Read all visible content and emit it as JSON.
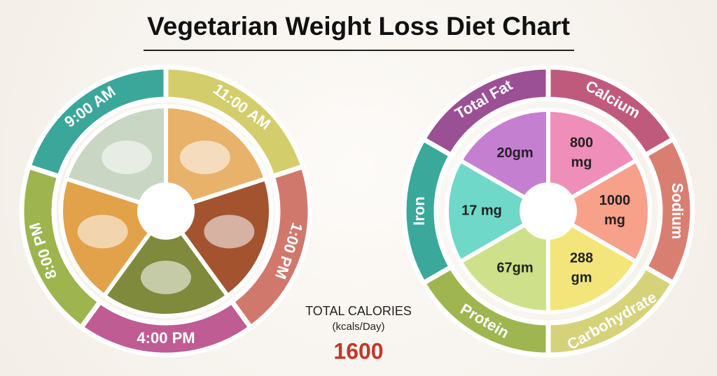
{
  "title": "Vegetarian Weight Loss Diet Chart",
  "meals": [
    {
      "time": "11:00 AM"
    },
    {
      "time": "1:00 PM"
    },
    {
      "time": "4:00 PM"
    },
    {
      "time": "8:00 PM"
    },
    {
      "time": "9:00 AM"
    }
  ],
  "total_calories": {
    "label": "TOTAL CALORIES",
    "unit": "(kcals/Day)",
    "value": "1600"
  },
  "nutrients": [
    {
      "name": "Calcium",
      "value": "800 mg"
    },
    {
      "name": "Sodium",
      "value": "1000 mg"
    },
    {
      "name": "Carbohydrate",
      "value": "288 gm"
    },
    {
      "name": "Protein",
      "value": "67gm"
    },
    {
      "name": "Iron",
      "value": "17 mg"
    },
    {
      "name": "Total Fat",
      "value": "20gm"
    }
  ]
}
